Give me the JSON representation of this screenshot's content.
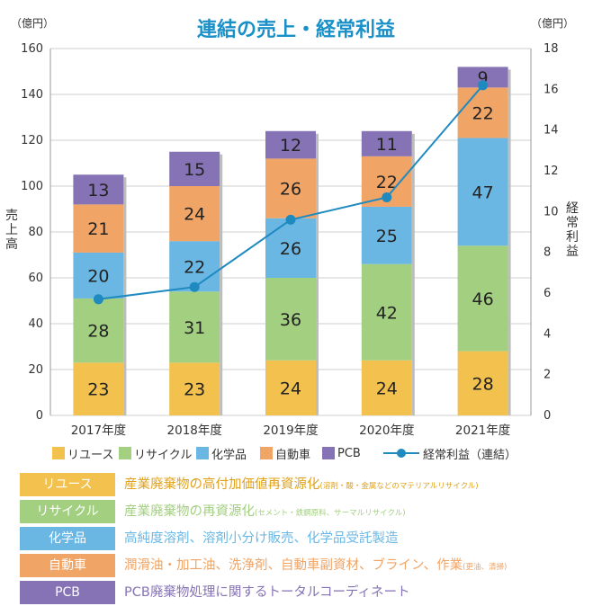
{
  "chart_data": {
    "type": "bar",
    "title": "連結の売上・経常利益",
    "categories": [
      "2017年度",
      "2018年度",
      "2019年度",
      "2020年度",
      "2021年度"
    ],
    "stacked": true,
    "series": [
      {
        "name": "リユース",
        "values": [
          23,
          23,
          24,
          24,
          28
        ],
        "color": "#f2c14e"
      },
      {
        "name": "リサイクル",
        "values": [
          28,
          31,
          36,
          42,
          46
        ],
        "color": "#a3cf81"
      },
      {
        "name": "化学品",
        "values": [
          20,
          22,
          26,
          25,
          47
        ],
        "color": "#6bb7e3"
      },
      {
        "name": "自動車",
        "values": [
          21,
          24,
          26,
          22,
          22
        ],
        "color": "#f0a466"
      },
      {
        "name": "PCB",
        "values": [
          13,
          15,
          12,
          11,
          9
        ],
        "color": "#8573b5"
      }
    ],
    "line_series": {
      "name": "経常利益（連結）",
      "values": [
        5.7,
        6.3,
        9.6,
        10.7,
        16.2
      ],
      "color": "#1f8ac0",
      "axis": "right"
    },
    "left_axis": {
      "label": "売上高",
      "unit": "（億円）",
      "ylim": [
        0,
        160
      ],
      "ticks": [
        "0",
        "20",
        "40",
        "60",
        "80",
        "100",
        "120",
        "140",
        "160"
      ]
    },
    "right_axis": {
      "label": "経常利益",
      "unit": "（億円）",
      "ylim": [
        0,
        18
      ],
      "ticks": [
        "0",
        "2",
        "4",
        "6",
        "8",
        "10",
        "12",
        "14",
        "16",
        "18"
      ]
    },
    "grid": true,
    "legend_position": "bottom"
  },
  "legend": [
    {
      "label": "リユース",
      "color": "#f2c14e"
    },
    {
      "label": "リサイクル",
      "color": "#a3cf81"
    },
    {
      "label": "化学品",
      "color": "#6bb7e3"
    },
    {
      "label": "自動車",
      "color": "#f0a466"
    },
    {
      "label": "PCB",
      "color": "#8573b5"
    }
  ],
  "legend_line_label": "経常利益（連結）",
  "categories_table": [
    {
      "label": "リユース",
      "color": "#f2c14e",
      "desc": "産業廃棄物の高付加価値再資源化",
      "note": "(溶剤・酸・金属などのマテリアルリサイクル)"
    },
    {
      "label": "リサイクル",
      "color": "#a3cf81",
      "desc": "産業廃棄物の再資源化",
      "note": "(セメント・鉄鋼原料、サーマルリサイクル)"
    },
    {
      "label": "化学品",
      "color": "#6bb7e3",
      "desc": "高純度溶剤、溶剤小分け販売、化学品受託製造",
      "note": ""
    },
    {
      "label": "自動車",
      "color": "#f0a466",
      "desc": "潤滑油・加工油、洗浄剤、自動車副資材、ブライン、作業",
      "note": "(更油、清掃)"
    },
    {
      "label": "PCB",
      "color": "#8573b5",
      "desc": "PCB廃棄物処理に関するトータルコーディネート",
      "note": ""
    }
  ]
}
